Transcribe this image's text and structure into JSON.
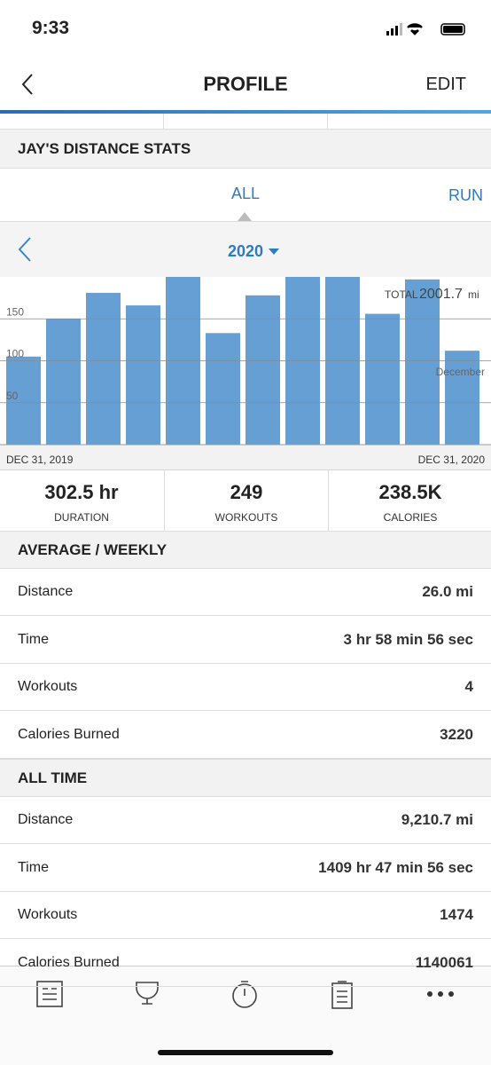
{
  "status_bar": {
    "time": "9:33"
  },
  "header": {
    "title": "PROFILE",
    "action": "EDIT"
  },
  "section_title": "JAY'S DISTANCE STATS",
  "tabs": [
    "ALL",
    "RUN"
  ],
  "year": "2020",
  "chart_data": {
    "type": "bar",
    "values": [
      105,
      150,
      181,
      166,
      200,
      133,
      178,
      200,
      200,
      156,
      197,
      112
    ],
    "color": "#659fd4",
    "ylim": [
      0,
      200
    ],
    "yticks": [
      50,
      100,
      150
    ],
    "grid": true,
    "total_label": "TOTAL",
    "total_value": "2001.7",
    "total_unit": "mi",
    "annotation": "December",
    "x_start": "DEC 31, 2019",
    "x_end": "DEC 31, 2020"
  },
  "summary": [
    {
      "value": "302.5 hr",
      "label": "DURATION"
    },
    {
      "value": "249",
      "label": "WORKOUTS"
    },
    {
      "value": "238.5K",
      "label": "CALORIES"
    }
  ],
  "average_weekly": {
    "title": "AVERAGE / WEEKLY",
    "rows": [
      [
        "Distance",
        "26.0 mi"
      ],
      [
        "Time",
        "3 hr 58 min 56 sec"
      ],
      [
        "Workouts",
        "4"
      ],
      [
        "Calories Burned",
        "3220"
      ]
    ]
  },
  "all_time": {
    "title": "ALL TIME",
    "rows": [
      [
        "Distance",
        "9,210.7 mi"
      ],
      [
        "Time",
        "1409 hr 47 min 56 sec"
      ],
      [
        "Workouts",
        "1474"
      ],
      [
        "Calories Burned",
        "1140061"
      ]
    ]
  }
}
